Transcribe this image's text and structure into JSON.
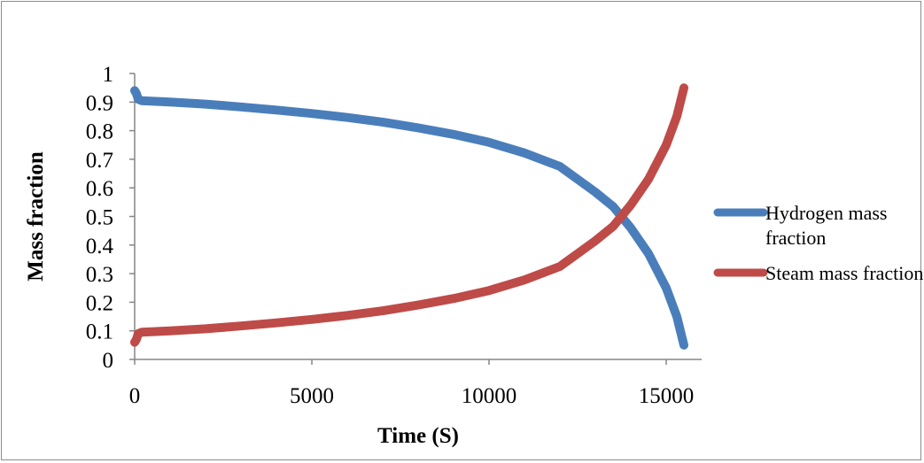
{
  "chart_data": {
    "type": "line",
    "title": "",
    "xlabel": "Time (S)",
    "ylabel": "Mass fraction",
    "xlim": [
      0,
      16000
    ],
    "ylim": [
      0,
      1
    ],
    "x_ticks": [
      0,
      5000,
      10000,
      15000
    ],
    "x_tick_labels": [
      "0",
      "5000",
      "10000",
      "15000"
    ],
    "y_ticks": [
      0,
      0.1,
      0.2,
      0.3,
      0.4,
      0.5,
      0.6,
      0.7,
      0.8,
      0.9,
      1
    ],
    "y_tick_labels": [
      "0",
      "0.1",
      "0.2",
      "0.3",
      "0.4",
      "0.5",
      "0.6",
      "0.7",
      "0.8",
      "0.9",
      "1"
    ],
    "grid": false,
    "legend_position": "right",
    "series": [
      {
        "name": "Hydrogen mass fraction",
        "color": "#4a7ebb",
        "x": [
          0,
          50,
          100,
          200,
          1000,
          2000,
          3000,
          4000,
          5000,
          6000,
          7000,
          8000,
          9000,
          10000,
          11000,
          12000,
          12500,
          13000,
          13500,
          14000,
          14500,
          15000,
          15300,
          15500
        ],
        "y": [
          0.94,
          0.93,
          0.91,
          0.905,
          0.9,
          0.893,
          0.883,
          0.872,
          0.86,
          0.846,
          0.83,
          0.81,
          0.787,
          0.759,
          0.722,
          0.675,
          0.63,
          0.585,
          0.535,
          0.46,
          0.37,
          0.25,
          0.15,
          0.05
        ]
      },
      {
        "name": "Steam mass fraction",
        "color": "#be4b48",
        "x": [
          0,
          50,
          100,
          200,
          1000,
          2000,
          3000,
          4000,
          5000,
          6000,
          7000,
          8000,
          9000,
          10000,
          11000,
          12000,
          12500,
          13000,
          13500,
          14000,
          14500,
          15000,
          15300,
          15500
        ],
        "y": [
          0.06,
          0.07,
          0.09,
          0.095,
          0.1,
          0.107,
          0.117,
          0.128,
          0.14,
          0.154,
          0.17,
          0.19,
          0.213,
          0.241,
          0.278,
          0.325,
          0.37,
          0.415,
          0.465,
          0.54,
          0.63,
          0.75,
          0.85,
          0.95
        ]
      }
    ]
  }
}
